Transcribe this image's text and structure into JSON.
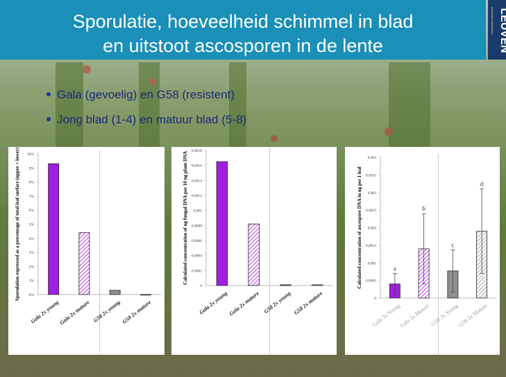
{
  "slide": {
    "title_lines": [
      "Sporulatie, hoeveelheid schimmel in blad",
      "en uitstoot ascosporen in de lente"
    ],
    "bullets": [
      "Gala (gevoelig) en G58 (resistent)",
      "Jong blad (1-4) en matuur blad (5-8)"
    ],
    "logo": {
      "name": "LEUVEN",
      "sub": "KATHOLIEKE UNIVERSITEIT"
    }
  },
  "chart_data": [
    {
      "type": "bar",
      "y_label": "Sporulation expressed as a percentage of total leaf surface (upper + lower)",
      "categories": [
        "Gala 2x young",
        "Gala 2x mature",
        "G58 2x young",
        "G58 2x mature"
      ],
      "values": [
        9.3,
        4.4,
        0.3,
        0
      ],
      "colors": [
        "#a020e0",
        "#d070f0",
        "#909090",
        "#bbbbbb"
      ],
      "hatch": [
        false,
        true,
        false,
        true
      ],
      "ylim": [
        0,
        10
      ],
      "yticks": [
        {
          "value": 0,
          "label": "0%"
        },
        {
          "value": 1,
          "label": "1%"
        },
        {
          "value": 2,
          "label": "2%"
        },
        {
          "value": 3,
          "label": "3%"
        },
        {
          "value": 4,
          "label": "4%"
        },
        {
          "value": 5,
          "label": "5%"
        },
        {
          "value": 6,
          "label": "6%"
        },
        {
          "value": 7,
          "label": "7%"
        },
        {
          "value": 8,
          "label": "8%"
        },
        {
          "value": 9,
          "label": "9%"
        },
        {
          "value": 10,
          "label": "10%"
        }
      ]
    },
    {
      "type": "bar",
      "y_label": "Calculated concentration of ng fungal DNA per 10 ng plant DNA",
      "categories": [
        "Gala 2x young",
        "Gala 2x mature",
        "G58 2x young",
        "G58 2x mature"
      ],
      "values": [
        0.00165,
        0.00082,
        1e-05,
        1e-05
      ],
      "colors": [
        "#a020e0",
        "#d070f0",
        "#909090",
        "#bbbbbb"
      ],
      "hatch": [
        false,
        true,
        false,
        true
      ],
      "ylim": [
        0,
        0.0018
      ],
      "yticks": [
        0,
        {
          "value": 0.0002,
          "label": "0,0002"
        },
        {
          "value": 0.0004,
          "label": "0,0004"
        },
        {
          "value": 0.0006,
          "label": "0,0006"
        },
        {
          "value": 0.0008,
          "label": "0,0008"
        },
        {
          "value": 0.001,
          "label": "0,001"
        },
        {
          "value": 0.0012,
          "label": "0,0012"
        },
        {
          "value": 0.0014,
          "label": "0,0014"
        },
        {
          "value": 0.0016,
          "label": "0,0016"
        },
        {
          "value": 0.0018,
          "label": "0,0018"
        }
      ]
    },
    {
      "type": "bar",
      "y_label": "Calculated concentration of ascospore DNA in ng per 1 leaf",
      "categories": [
        "Gala 2x Young",
        "Gala 2x Mature",
        "G58 2x Young",
        "G58 2x Mature"
      ],
      "values": [
        0.0004,
        0.0014,
        0.00077,
        0.0019
      ],
      "errors": [
        0.0003,
        0.001,
        0.0006,
        0.0012
      ],
      "annotations": [
        "a",
        "b",
        "c",
        "d"
      ],
      "colors": [
        "#a020e0",
        "#d070f0",
        "#909090",
        "#bbbbbb"
      ],
      "hatch": [
        false,
        true,
        false,
        true
      ],
      "ylim": [
        0,
        0.004
      ],
      "yticks": [
        0,
        {
          "value": 0.0005,
          "label": "0,0005"
        },
        {
          "value": 0.001,
          "label": "0,001"
        },
        {
          "value": 0.0015,
          "label": "0,0015"
        },
        {
          "value": 0.002,
          "label": "0,002"
        },
        {
          "value": 0.0025,
          "label": "0,0025"
        },
        {
          "value": 0.003,
          "label": "0,003"
        },
        {
          "value": 0.0035,
          "label": "0,0035"
        },
        {
          "value": 0.004,
          "label": "0,004"
        }
      ]
    }
  ]
}
